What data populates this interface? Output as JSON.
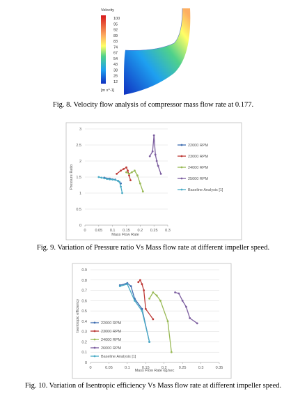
{
  "figure_8": {
    "legend_title": "Velocity",
    "legend_values": [
      100,
      95,
      92,
      89,
      83,
      74,
      67,
      54,
      43,
      38,
      26,
      12
    ],
    "legend_units": "[m s^-1]",
    "caption": "Fig. 8. Velocity flow analysis of compressor mass flow rate at 0.177."
  },
  "chart_data": [
    {
      "type": "line",
      "caption": "Fig. 9. Variation of Pressure ratio Vs Mass flow rate at different impeller speed.",
      "x_label": "Mass Flow Rate",
      "y_label": "Pressure Ratio",
      "xlim": [
        0,
        0.3
      ],
      "xticks": [
        0,
        0.05,
        0.1,
        0.15,
        0.2,
        0.25,
        0.3
      ],
      "ylim": [
        0,
        3
      ],
      "yticks": [
        0,
        0.5,
        1,
        1.5,
        2,
        2.5,
        3
      ],
      "series": [
        {
          "name": "22000 RPM",
          "color": "#3d6cb0",
          "x": [
            0.07,
            0.09,
            0.1,
            0.11,
            0.12,
            0.13
          ],
          "values": [
            1.48,
            1.45,
            1.43,
            1.42,
            1.38,
            1.3
          ]
        },
        {
          "name": "23000 RPM",
          "color": "#be3a36",
          "x": [
            0.115,
            0.13,
            0.14,
            0.15,
            0.155,
            0.16,
            0.165
          ],
          "values": [
            1.6,
            1.7,
            1.75,
            1.8,
            1.7,
            1.55,
            1.4
          ]
        },
        {
          "name": "24000 RPM",
          "color": "#98b954",
          "x": [
            0.15,
            0.16,
            0.17,
            0.18,
            0.19,
            0.2,
            0.21
          ],
          "values": [
            1.65,
            1.6,
            1.65,
            1.7,
            1.55,
            1.3,
            1.05
          ]
        },
        {
          "name": "25000 RPM",
          "color": "#7d5fa0",
          "x": [
            0.235,
            0.245,
            0.25,
            0.255,
            0.26,
            0.265,
            0.275
          ],
          "values": [
            2.15,
            2.3,
            2.8,
            2.2,
            2.0,
            1.85,
            1.6
          ]
        },
        {
          "name": "Baseline Analysis [1]",
          "color": "#4bacc6",
          "x": [
            0.05,
            0.06,
            0.07,
            0.08,
            0.09,
            0.1,
            0.11,
            0.12,
            0.125,
            0.13,
            0.135
          ],
          "values": [
            1.5,
            1.48,
            1.46,
            1.44,
            1.43,
            1.42,
            1.41,
            1.38,
            1.35,
            1.2,
            1.0
          ]
        }
      ]
    },
    {
      "type": "line",
      "caption": "Fig. 10. Variation of Isentropic efficiency Vs Mass flow rate at different impeller speed.",
      "x_label": "Mass Flow Rate kg/sec",
      "y_label": "Isentropic efficiency",
      "xlim": [
        0,
        0.35
      ],
      "xticks": [
        0,
        0.05,
        0.1,
        0.15,
        0.2,
        0.25,
        0.3,
        0.35
      ],
      "ylim": [
        0,
        0.9
      ],
      "yticks": [
        0,
        0.1,
        0.2,
        0.3,
        0.4,
        0.5,
        0.6,
        0.7,
        0.8,
        0.9
      ],
      "series": [
        {
          "name": "22000 RPM",
          "color": "#3d6cb0",
          "x": [
            0.08,
            0.1,
            0.11,
            0.12,
            0.14,
            0.16
          ],
          "values": [
            0.75,
            0.77,
            0.74,
            0.62,
            0.52,
            0.2
          ]
        },
        {
          "name": "23000 RPM",
          "color": "#be3a36",
          "x": [
            0.13,
            0.135,
            0.14,
            0.145,
            0.15,
            0.17
          ],
          "values": [
            0.78,
            0.8,
            0.76,
            0.7,
            0.52,
            0.42
          ]
        },
        {
          "name": "24000 RPM",
          "color": "#98b954",
          "x": [
            0.16,
            0.17,
            0.18,
            0.19,
            0.21,
            0.22
          ],
          "values": [
            0.62,
            0.68,
            0.65,
            0.6,
            0.4,
            0.1
          ]
        },
        {
          "name": "26000 RPM",
          "color": "#7d5fa0",
          "x": [
            0.23,
            0.24,
            0.25,
            0.26,
            0.27,
            0.29
          ],
          "values": [
            0.68,
            0.67,
            0.6,
            0.54,
            0.43,
            0.38
          ]
        },
        {
          "name": "Baseline Analysis [1]",
          "color": "#4bacc6",
          "x": [
            0.08,
            0.1,
            0.12,
            0.14,
            0.16
          ],
          "values": [
            0.74,
            0.76,
            0.6,
            0.5,
            0.2
          ]
        }
      ]
    }
  ]
}
